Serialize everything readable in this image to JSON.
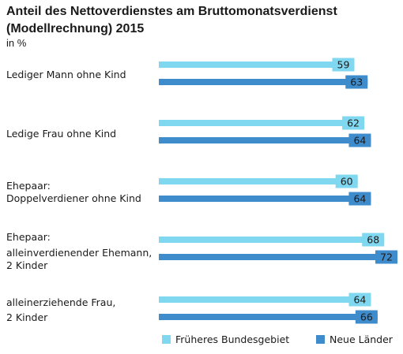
{
  "chart_data": {
    "type": "bar",
    "orientation": "horizontal",
    "title": "Anteil des Nettoverdienstes am Bruttomonatsverdienst (Modellrechnung) 2015",
    "unit": "in %",
    "categories": [
      [
        "Lediger Mann ohne Kind"
      ],
      [
        "Ledige Frau ohne Kind"
      ],
      [
        "Ehepaar:",
        "Doppelverdiener ohne Kind"
      ],
      [
        "Ehepaar:",
        "alleinverdienender Ehemann,",
        "2 Kinder"
      ],
      [
        "alleinerziehende Frau,",
        "2 Kinder"
      ]
    ],
    "series": [
      {
        "name": "Früheres Bundesgebiet",
        "color": "#7fd8ef",
        "values": [
          59,
          62,
          60,
          68,
          64
        ]
      },
      {
        "name": "Neue Länder",
        "color": "#3f8ccc",
        "values": [
          63,
          64,
          64,
          72,
          66
        ]
      }
    ],
    "xlim": [
      0,
      72
    ],
    "grid": false,
    "legend": "bottom-right"
  }
}
